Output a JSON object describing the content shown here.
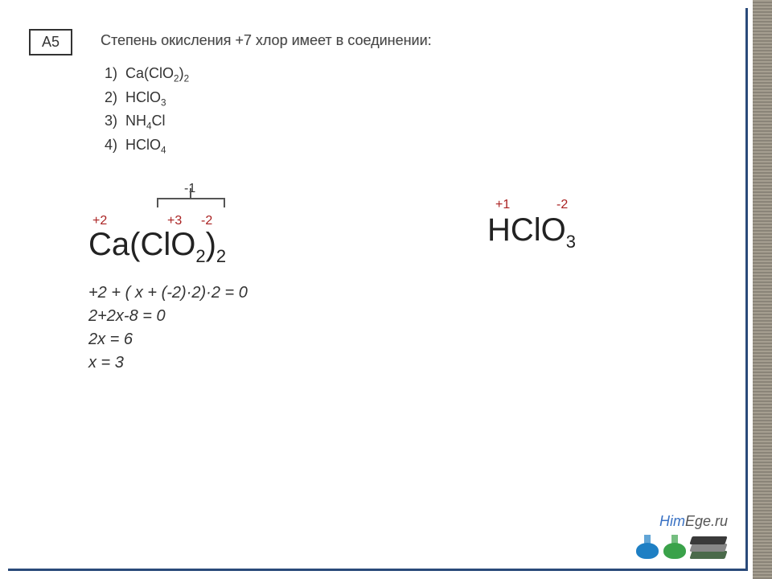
{
  "question": {
    "number": "A5",
    "text": "Степень окисления +7 хлор имеет в соединении:",
    "options": [
      {
        "n": "1)",
        "html": "Ca(ClO<span class='sub'>2</span>)<span class='sub'>2</span>"
      },
      {
        "n": "2)",
        "html": "HClO<span class='sub'>3</span>"
      },
      {
        "n": "3)",
        "html": "NH<span class='sub'>4</span>Cl"
      },
      {
        "n": "4)",
        "html": "HClO<span class='sub'>4</span>"
      }
    ]
  },
  "left_work": {
    "ox": {
      "group": "-1",
      "ca": "+2",
      "cl": "+3",
      "o": "-2"
    },
    "formula_html": "Ca(ClO<span class='sub'>2</span>)<span class='sub'>2</span>",
    "calc_lines": [
      "+2  + ( x + (-2)·2)·2 = 0",
      "2+2x-8 = 0",
      "2x = 6",
      "x = 3"
    ]
  },
  "right_work": {
    "ox": {
      "h": "+1",
      "o": "-2"
    },
    "formula_html": "HClO<span class='sub'>3</span>"
  },
  "brand": {
    "him": "Him",
    "rest": "Ege.ru"
  },
  "colors": {
    "ox_red": "#aa2222",
    "border": "#2a4a7a"
  }
}
